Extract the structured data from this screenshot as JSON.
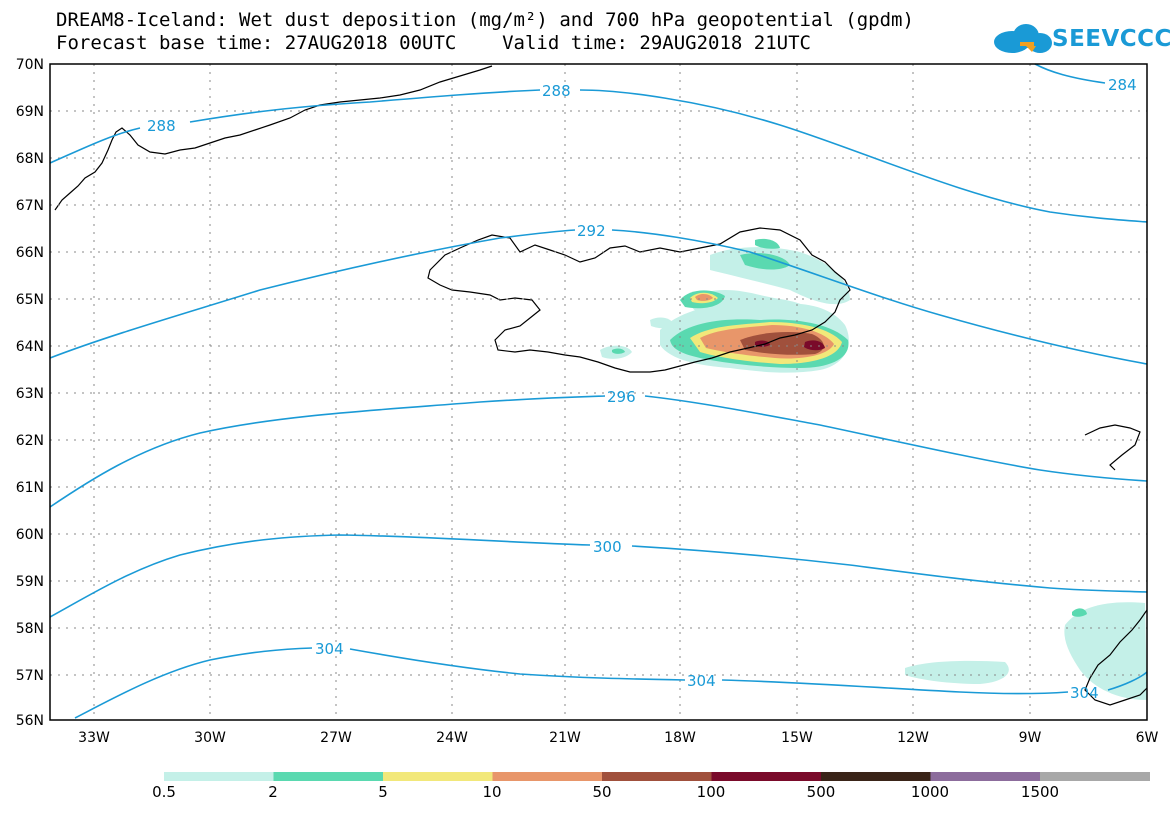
{
  "header": {
    "title_line1": "DREAM8-Iceland: Wet dust deposition (mg/m²) and 700 hPa geopotential (gpdm)",
    "title_line2": "Forecast base time: 27AUG2018 00UTC    Valid time: 29AUG2018 21UTC",
    "logo_text": "SEEVCCC"
  },
  "map": {
    "lat_labels": [
      "70N",
      "69N",
      "68N",
      "67N",
      "66N",
      "65N",
      "64N",
      "63N",
      "62N",
      "61N",
      "60N",
      "59N",
      "58N",
      "57N",
      "56N"
    ],
    "lon_labels": [
      "33W",
      "30W",
      "27W",
      "24W",
      "21W",
      "18W",
      "15W",
      "12W",
      "9W",
      "6W"
    ],
    "contour_labels": [
      "288",
      "288",
      "284",
      "292",
      "296",
      "300",
      "304",
      "304",
      "304"
    ],
    "contour_color": "#1a9ad6",
    "region": "Iceland"
  },
  "colorbar": {
    "labels": [
      "0.5",
      "2",
      "5",
      "10",
      "50",
      "100",
      "500",
      "1000",
      "1500"
    ],
    "colors": [
      "#c4f0e8",
      "#5ad9b0",
      "#f2e87a",
      "#e8966a",
      "#a0503c",
      "#7a0a2a",
      "#3a2418",
      "#8c6c9c",
      "#a8a8a8"
    ]
  }
}
